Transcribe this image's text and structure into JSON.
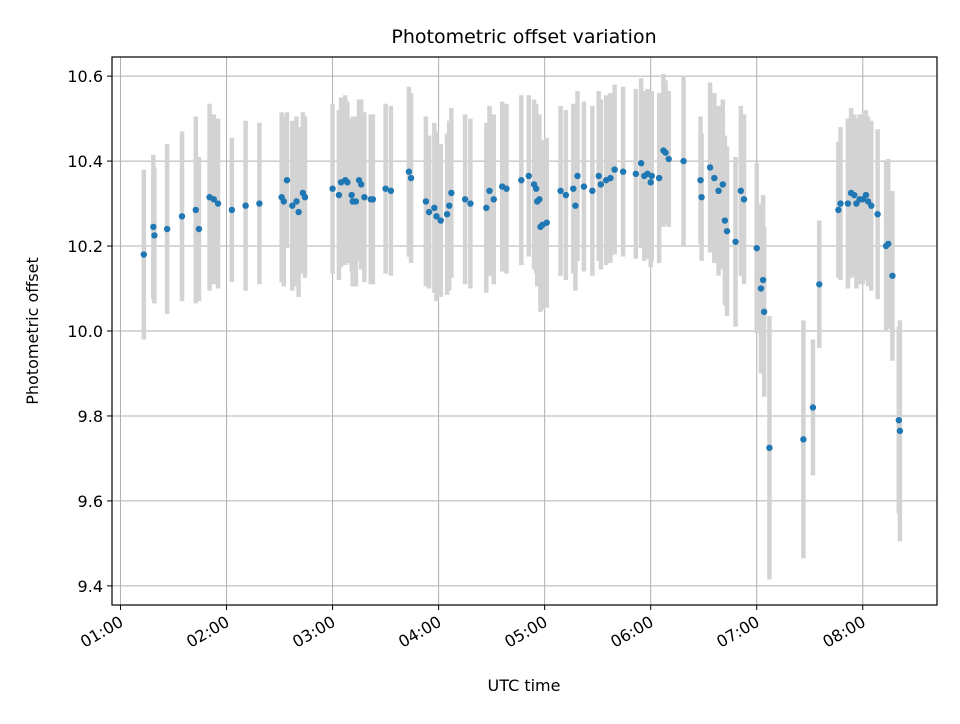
{
  "chart_data": {
    "type": "scatter",
    "title": "Photometric offset variation",
    "xlabel": "UTC time",
    "ylabel": "Photometric offset",
    "x_unit": "hours UTC",
    "xlim": [
      0.92,
      8.7
    ],
    "ylim": [
      9.355,
      10.645
    ],
    "x_ticks": [
      1,
      2,
      3,
      4,
      5,
      6,
      7,
      8
    ],
    "x_tick_labels": [
      "01:00",
      "02:00",
      "03:00",
      "04:00",
      "05:00",
      "06:00",
      "07:00",
      "08:00"
    ],
    "y_ticks": [
      9.4,
      9.6,
      9.8,
      10.0,
      10.2,
      10.4,
      10.6
    ],
    "y_tick_labels": [
      "9.4",
      "9.6",
      "9.8",
      "10.0",
      "10.2",
      "10.4",
      "10.6"
    ],
    "grid": true,
    "legend": "none",
    "marker_color": "#1f77b4",
    "errorbar_color": "#d3d3d3",
    "points": [
      [
        1.22,
        10.18,
        0.2
      ],
      [
        1.31,
        10.245,
        0.17
      ],
      [
        1.32,
        10.225,
        0.16
      ],
      [
        1.44,
        10.24,
        0.2
      ],
      [
        1.58,
        10.27,
        0.2
      ],
      [
        1.71,
        10.285,
        0.22
      ],
      [
        1.74,
        10.24,
        0.17
      ],
      [
        1.84,
        10.315,
        0.22
      ],
      [
        1.88,
        10.31,
        0.2
      ],
      [
        1.92,
        10.3,
        0.2
      ],
      [
        2.05,
        10.285,
        0.17
      ],
      [
        2.18,
        10.295,
        0.2
      ],
      [
        2.31,
        10.3,
        0.19
      ],
      [
        2.52,
        10.315,
        0.2
      ],
      [
        2.54,
        10.305,
        0.2
      ],
      [
        2.57,
        10.355,
        0.16
      ],
      [
        2.62,
        10.295,
        0.2
      ],
      [
        2.66,
        10.305,
        0.2
      ],
      [
        2.68,
        10.28,
        0.2
      ],
      [
        2.72,
        10.325,
        0.19
      ],
      [
        2.74,
        10.315,
        0.19
      ],
      [
        3.0,
        10.335,
        0.2
      ],
      [
        3.06,
        10.32,
        0.2
      ],
      [
        3.08,
        10.35,
        0.2
      ],
      [
        3.12,
        10.355,
        0.2
      ],
      [
        3.14,
        10.35,
        0.19
      ],
      [
        3.18,
        10.32,
        0.18
      ],
      [
        3.19,
        10.305,
        0.2
      ],
      [
        3.22,
        10.305,
        0.2
      ],
      [
        3.25,
        10.355,
        0.19
      ],
      [
        3.27,
        10.345,
        0.2
      ],
      [
        3.3,
        10.315,
        0.2
      ],
      [
        3.36,
        10.31,
        0.2
      ],
      [
        3.38,
        10.31,
        0.2
      ],
      [
        3.5,
        10.335,
        0.2
      ],
      [
        3.55,
        10.33,
        0.2
      ],
      [
        3.72,
        10.375,
        0.2
      ],
      [
        3.74,
        10.36,
        0.2
      ],
      [
        3.88,
        10.305,
        0.2
      ],
      [
        3.91,
        10.28,
        0.18
      ],
      [
        3.96,
        10.29,
        0.2
      ],
      [
        3.98,
        10.27,
        0.2
      ],
      [
        4.02,
        10.26,
        0.18
      ],
      [
        4.08,
        10.275,
        0.19
      ],
      [
        4.1,
        10.295,
        0.2
      ],
      [
        4.12,
        10.325,
        0.2
      ],
      [
        4.25,
        10.31,
        0.2
      ],
      [
        4.3,
        10.3,
        0.2
      ],
      [
        4.45,
        10.29,
        0.2
      ],
      [
        4.48,
        10.33,
        0.2
      ],
      [
        4.52,
        10.31,
        0.2
      ],
      [
        4.6,
        10.34,
        0.2
      ],
      [
        4.64,
        10.335,
        0.2
      ],
      [
        4.78,
        10.355,
        0.2
      ],
      [
        4.85,
        10.365,
        0.19
      ],
      [
        4.9,
        10.345,
        0.2
      ],
      [
        4.92,
        10.335,
        0.2
      ],
      [
        4.93,
        10.305,
        0.2
      ],
      [
        4.95,
        10.31,
        0.2
      ],
      [
        4.96,
        10.245,
        0.2
      ],
      [
        4.98,
        10.25,
        0.2
      ],
      [
        5.02,
        10.255,
        0.2
      ],
      [
        5.15,
        10.33,
        0.2
      ],
      [
        5.2,
        10.32,
        0.2
      ],
      [
        5.27,
        10.335,
        0.2
      ],
      [
        5.29,
        10.295,
        0.2
      ],
      [
        5.31,
        10.365,
        0.2
      ],
      [
        5.37,
        10.34,
        0.2
      ],
      [
        5.45,
        10.33,
        0.2
      ],
      [
        5.51,
        10.365,
        0.2
      ],
      [
        5.53,
        10.345,
        0.2
      ],
      [
        5.58,
        10.355,
        0.2
      ],
      [
        5.62,
        10.36,
        0.2
      ],
      [
        5.66,
        10.38,
        0.2
      ],
      [
        5.74,
        10.375,
        0.2
      ],
      [
        5.86,
        10.37,
        0.2
      ],
      [
        5.91,
        10.395,
        0.2
      ],
      [
        5.94,
        10.365,
        0.2
      ],
      [
        5.97,
        10.37,
        0.2
      ],
      [
        6.0,
        10.35,
        0.2
      ],
      [
        6.01,
        10.365,
        0.2
      ],
      [
        6.08,
        10.36,
        0.2
      ],
      [
        6.12,
        10.425,
        0.18
      ],
      [
        6.14,
        10.42,
        0.17
      ],
      [
        6.17,
        10.405,
        0.16
      ],
      [
        6.31,
        10.4,
        0.2
      ],
      [
        6.47,
        10.355,
        0.15
      ],
      [
        6.48,
        10.315,
        0.15
      ],
      [
        6.56,
        10.385,
        0.2
      ],
      [
        6.6,
        10.36,
        0.2
      ],
      [
        6.64,
        10.33,
        0.2
      ],
      [
        6.68,
        10.345,
        0.2
      ],
      [
        6.7,
        10.26,
        0.2
      ],
      [
        6.72,
        10.235,
        0.2
      ],
      [
        6.8,
        10.21,
        0.2
      ],
      [
        6.85,
        10.33,
        0.2
      ],
      [
        6.88,
        10.31,
        0.2
      ],
      [
        7.0,
        10.195,
        0.2
      ],
      [
        7.04,
        10.1,
        0.2
      ],
      [
        7.06,
        10.12,
        0.2
      ],
      [
        7.07,
        10.045,
        0.2
      ],
      [
        7.12,
        9.725,
        0.31
      ],
      [
        7.44,
        9.745,
        0.28
      ],
      [
        7.53,
        9.82,
        0.16
      ],
      [
        7.59,
        10.11,
        0.15
      ],
      [
        7.77,
        10.285,
        0.16
      ],
      [
        7.79,
        10.3,
        0.18
      ],
      [
        7.86,
        10.3,
        0.2
      ],
      [
        7.89,
        10.325,
        0.2
      ],
      [
        7.92,
        10.32,
        0.19
      ],
      [
        7.94,
        10.3,
        0.2
      ],
      [
        7.97,
        10.31,
        0.2
      ],
      [
        8.0,
        10.31,
        0.2
      ],
      [
        8.03,
        10.32,
        0.2
      ],
      [
        8.05,
        10.305,
        0.2
      ],
      [
        8.08,
        10.295,
        0.2
      ],
      [
        8.14,
        10.275,
        0.2
      ],
      [
        8.22,
        10.2,
        0.2
      ],
      [
        8.24,
        10.205,
        0.2
      ],
      [
        8.28,
        10.13,
        0.2
      ],
      [
        8.34,
        9.79,
        0.22
      ],
      [
        8.35,
        9.765,
        0.26
      ]
    ]
  }
}
